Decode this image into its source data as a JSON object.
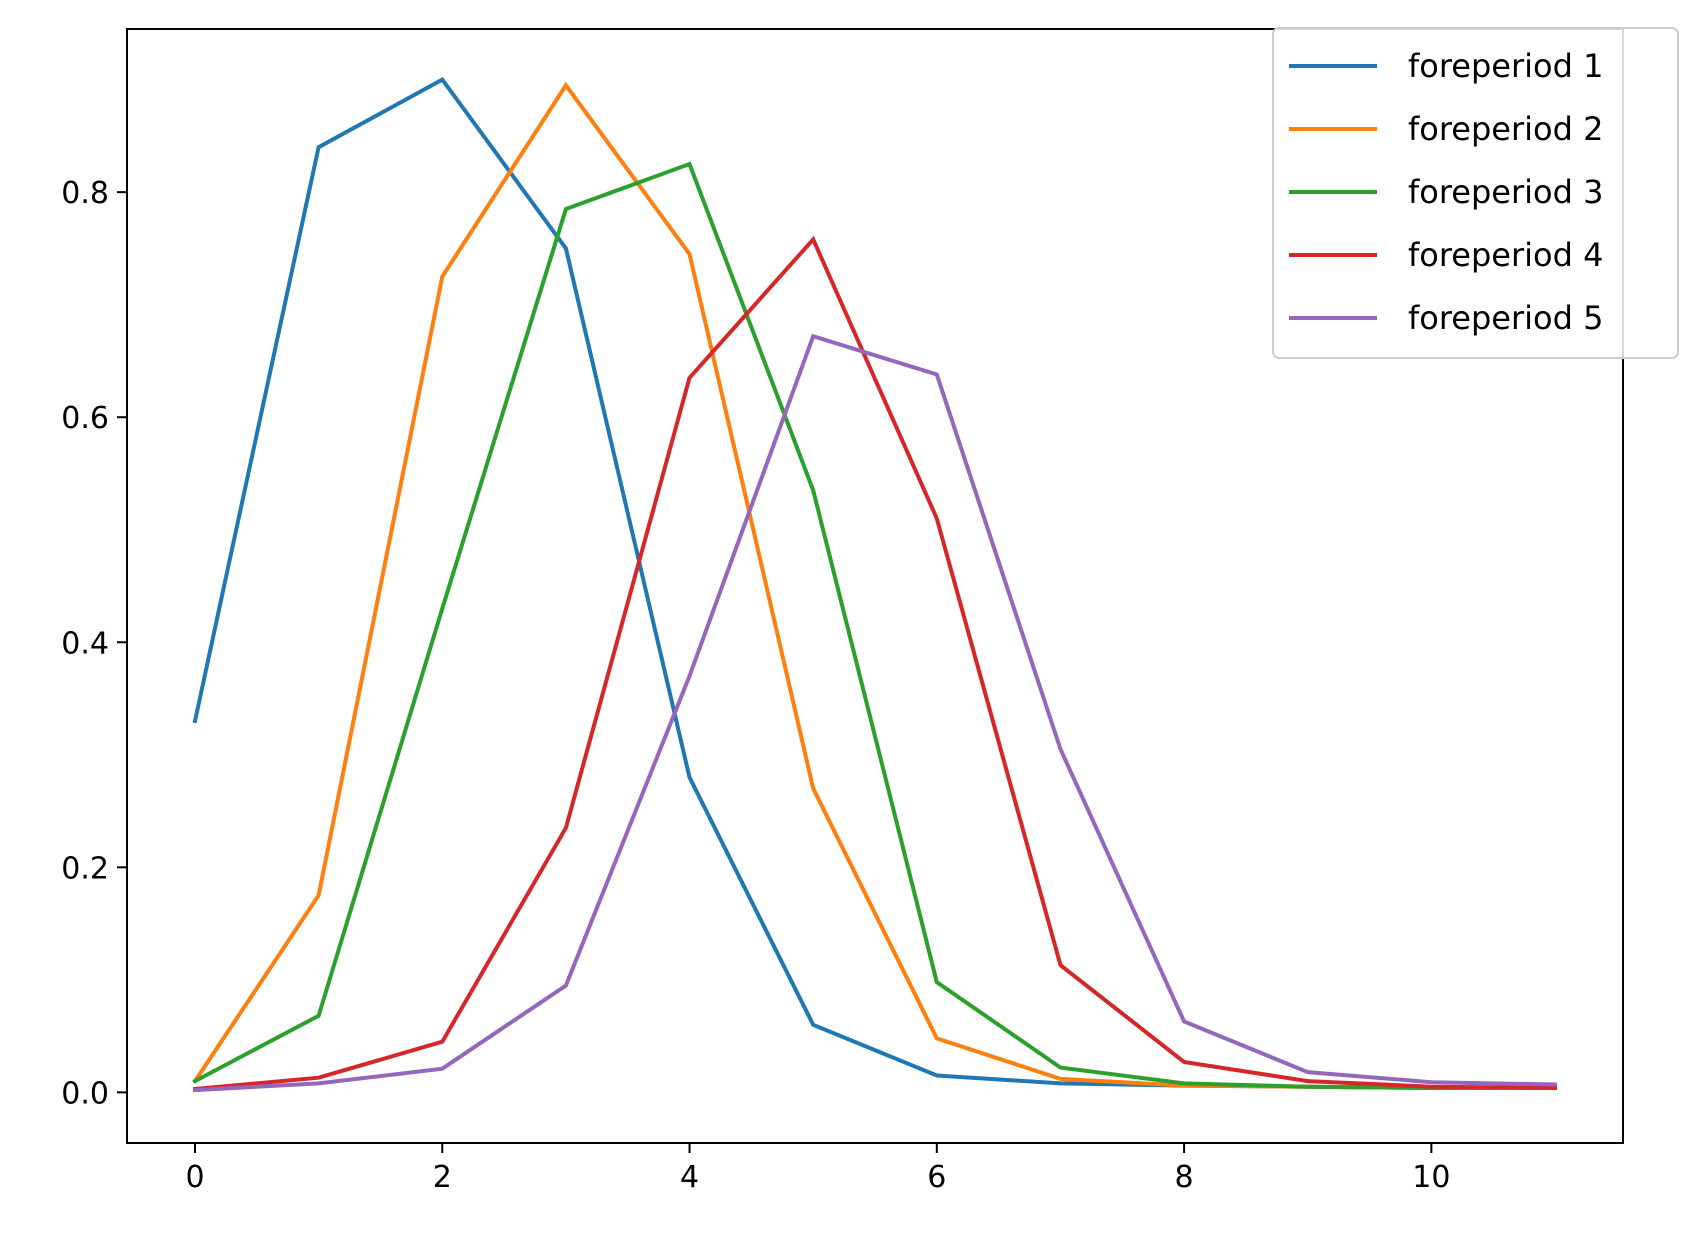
{
  "chart_data": {
    "type": "line",
    "title": "",
    "xlabel": "",
    "ylabel": "",
    "xlim": [
      -0.55,
      11.55
    ],
    "ylim": [
      -0.045,
      0.945
    ],
    "xticks": [
      0,
      2,
      4,
      6,
      8,
      10
    ],
    "xtick_labels": [
      "0",
      "2",
      "4",
      "6",
      "8",
      "10"
    ],
    "yticks": [
      0.0,
      0.2,
      0.4,
      0.6,
      0.8
    ],
    "ytick_labels": [
      "0.0",
      "0.2",
      "0.4",
      "0.6",
      "0.8"
    ],
    "grid": false,
    "legend_position": "top-right",
    "x": [
      0,
      1,
      2,
      3,
      4,
      5,
      6,
      7,
      8,
      9,
      10,
      11
    ],
    "series": [
      {
        "name": "foreperiod 1",
        "color": "#1f77b4",
        "values": [
          0.33,
          0.84,
          0.9,
          0.75,
          0.28,
          0.06,
          0.015,
          0.008,
          0.006,
          0.005,
          0.004,
          0.004
        ]
      },
      {
        "name": "foreperiod 2",
        "color": "#ff7f0e",
        "values": [
          0.01,
          0.175,
          0.725,
          0.895,
          0.745,
          0.27,
          0.048,
          0.012,
          0.006,
          0.005,
          0.004,
          0.004
        ]
      },
      {
        "name": "foreperiod 3",
        "color": "#2ca02c",
        "values": [
          0.01,
          0.068,
          0.43,
          0.785,
          0.825,
          0.535,
          0.098,
          0.022,
          0.008,
          0.005,
          0.004,
          0.004
        ]
      },
      {
        "name": "foreperiod 4",
        "color": "#d62728",
        "values": [
          0.003,
          0.013,
          0.045,
          0.235,
          0.635,
          0.758,
          0.51,
          0.113,
          0.027,
          0.01,
          0.005,
          0.004
        ]
      },
      {
        "name": "foreperiod 5",
        "color": "#9467bd",
        "values": [
          0.002,
          0.008,
          0.021,
          0.095,
          0.37,
          0.672,
          0.638,
          0.305,
          0.063,
          0.018,
          0.009,
          0.007
        ]
      }
    ]
  }
}
